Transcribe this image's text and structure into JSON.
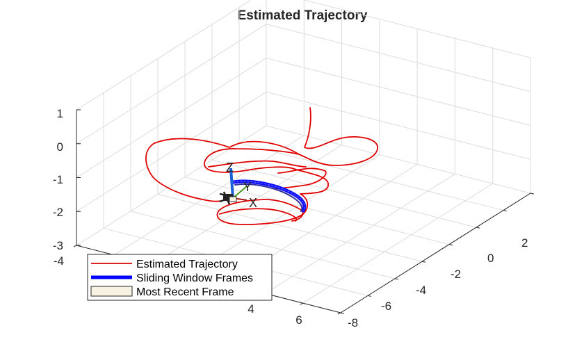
{
  "chart_data": {
    "type": "line",
    "title": "Estimated Trajectory",
    "view": "3d",
    "grid": true,
    "legend_placement": "bottom-left",
    "axes": {
      "x": {
        "label": "",
        "range": [
          -4,
          6
        ],
        "ticks": [
          "-4",
          "4",
          "6"
        ]
      },
      "y": {
        "label": "",
        "range": [
          -8,
          2
        ],
        "ticks": [
          "2",
          "0",
          "-2",
          "-4",
          "-6",
          "-8"
        ]
      },
      "z": {
        "label": "",
        "range": [
          -3,
          1
        ],
        "ticks": [
          "1",
          "0",
          "-1",
          "-2",
          "-3"
        ]
      }
    },
    "series": [
      {
        "name": "Estimated Trajectory",
        "color": "#e00000",
        "style": "thin-line"
      },
      {
        "name": "Sliding Window Frames",
        "color": "#0000ff",
        "style": "thick-line"
      },
      {
        "name": "Most Recent Frame",
        "color": "#f8f2e3",
        "style": "patch"
      }
    ],
    "frame_axis_labels": [
      "Z",
      "Y",
      "X"
    ]
  }
}
